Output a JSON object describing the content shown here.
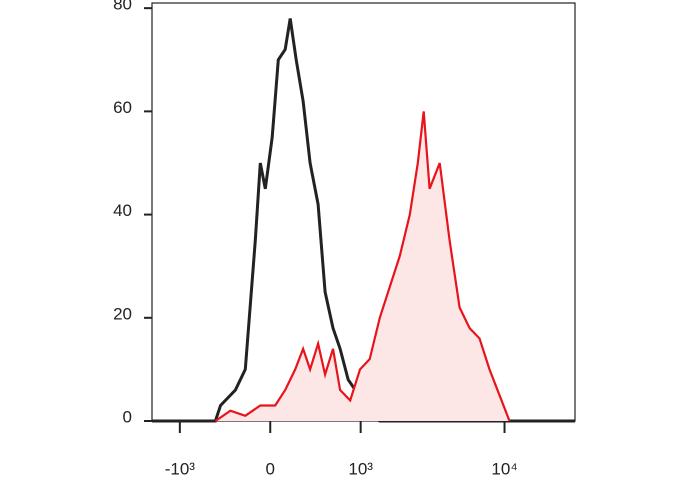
{
  "chart_data": {
    "type": "histogram-overlay",
    "xscale": "asinh",
    "xlim": [
      -1600,
      30000
    ],
    "xticks": [
      {
        "value": -1000,
        "label": "-10³"
      },
      0,
      {
        "value": 1000,
        "label": "10³"
      },
      {
        "value": 10000,
        "label": "10⁴"
      }
    ],
    "ylim": [
      0,
      81
    ],
    "yticks": [
      0,
      20,
      40,
      60,
      80
    ],
    "series": [
      {
        "color": "#222222",
        "fill": "none",
        "x": [
          -1600,
          -500,
          -445,
          -296,
          -207,
          -122,
          -81,
          -40,
          16,
          65,
          122,
          164,
          216,
          278,
          344,
          425,
          500,
          593,
          684,
          799,
          910,
          1077,
          1211,
          1387,
          30000
        ],
        "values": [
          0,
          0,
          3,
          6,
          10,
          35,
          50,
          45,
          55,
          70,
          72,
          78,
          70,
          62,
          50,
          42,
          25,
          18,
          14,
          8,
          6,
          4,
          1,
          0,
          0
        ]
      },
      {
        "color": "#e8141b",
        "fill": "#fde6e6",
        "x": [
          -500,
          -344,
          -207,
          -81,
          40,
          122,
          207,
          278,
          344,
          425,
          500,
          593,
          684,
          829,
          988,
          1170,
          1387,
          1634,
          1924,
          2257,
          2563,
          2818,
          3094,
          3624,
          4238,
          4956,
          5793,
          6760,
          7904,
          9240,
          10800
        ],
        "values": [
          0,
          2,
          1,
          3,
          3,
          6,
          10,
          14,
          10,
          15,
          9,
          14,
          6,
          4,
          10,
          12,
          20,
          26,
          32,
          40,
          50,
          60,
          45,
          50,
          35,
          22,
          18,
          16,
          10,
          5,
          0
        ]
      }
    ]
  }
}
